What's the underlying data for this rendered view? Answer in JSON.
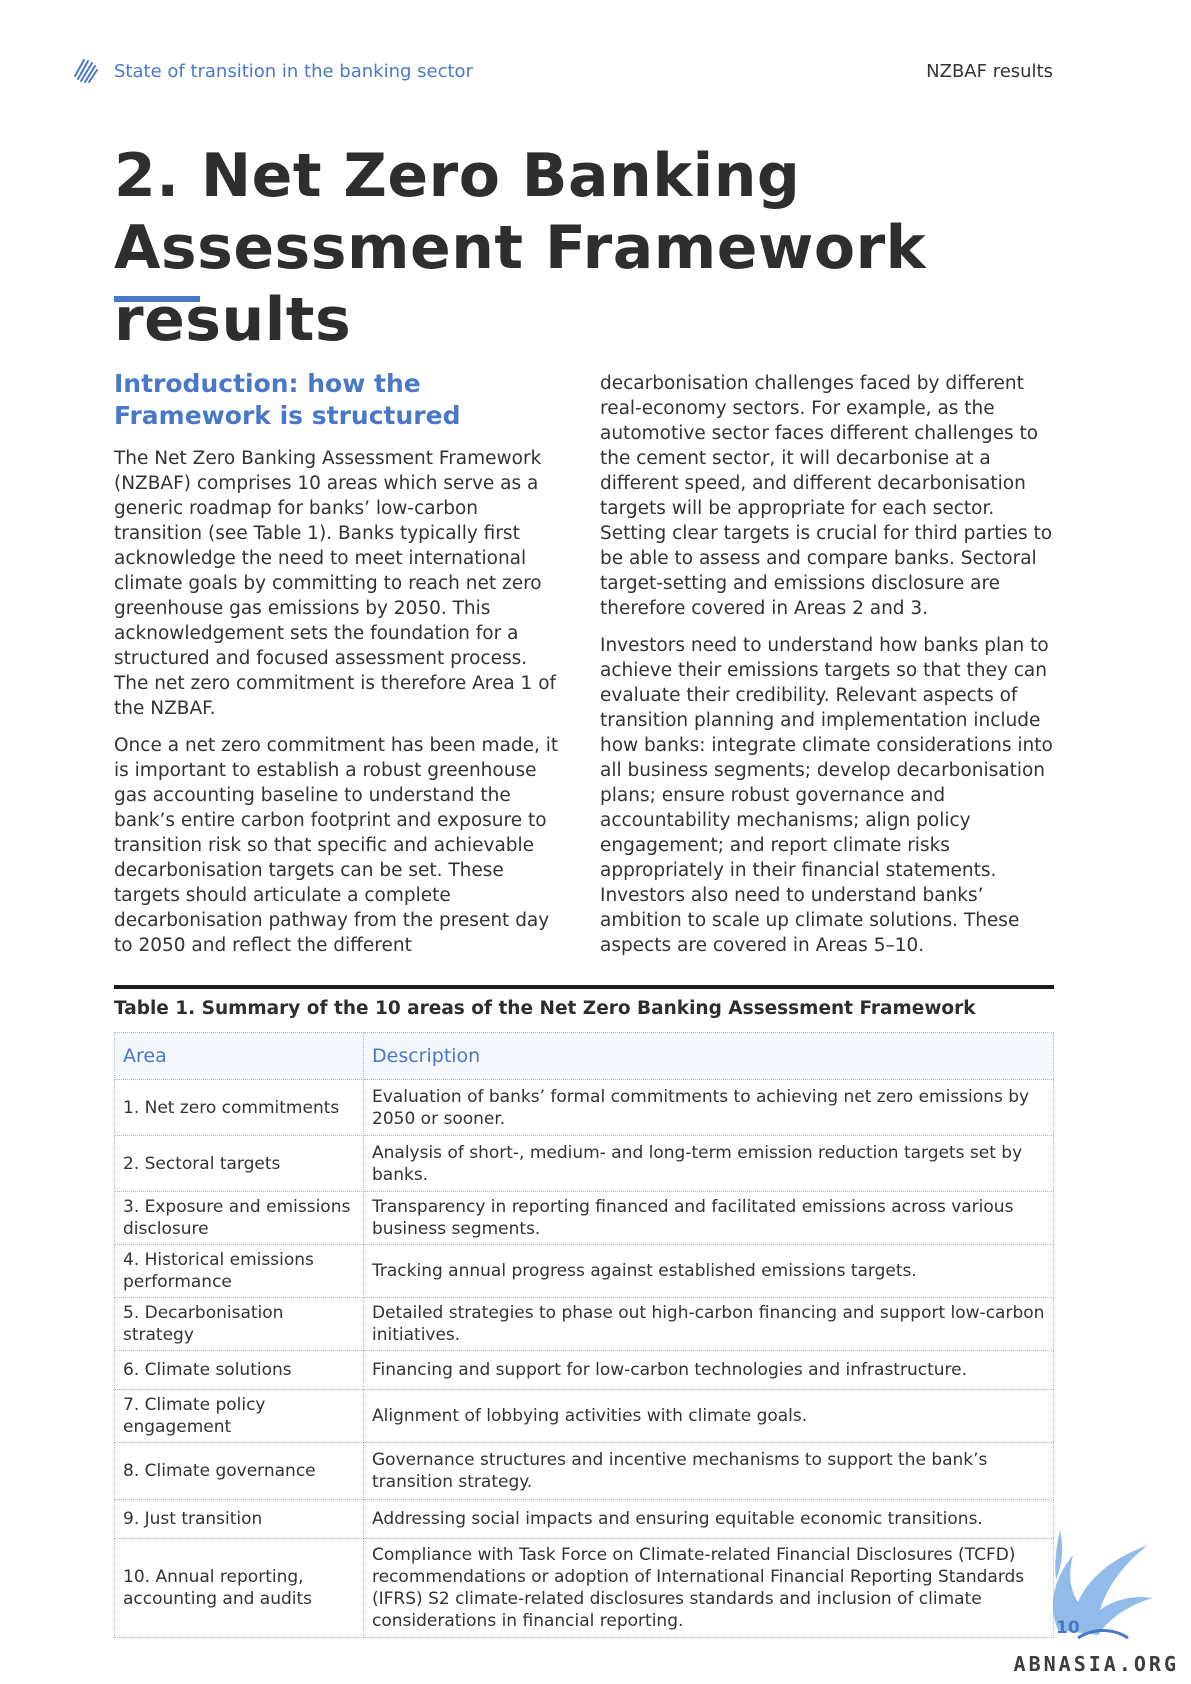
{
  "header": {
    "breadcrumb": "State of transition in the banking sector",
    "section": "NZBAF results",
    "logo_icon": "wave-lines-icon"
  },
  "title": {
    "line1": "2. Net Zero Banking",
    "line2": "Assessment Framework results"
  },
  "intro": {
    "heading_line1": "Introduction: how the",
    "heading_line2": "Framework is structured",
    "left_paragraphs": [
      "The Net Zero Banking Assessment Framework (NZBAF) comprises 10 areas which serve as a generic roadmap for banks’ low-carbon transition (see Table 1). Banks typically first acknowledge the need to meet international climate goals by committing to reach net zero greenhouse gas emissions by 2050. This acknowledgement sets the foundation for a structured and focused assessment process. The net zero commitment is therefore Area 1 of the NZBAF.",
      "Once a net zero commitment has been made, it is important to establish a robust greenhouse gas accounting baseline to understand the bank’s entire carbon footprint and exposure to transition risk so that specific and achievable decarbonisation targets can be set. These targets should articulate a complete decarbonisation pathway from the present day to 2050 and reflect the different"
    ],
    "right_paragraphs": [
      "decarbonisation challenges faced by different real-economy sectors. For example, as the automotive sector faces different challenges to the cement sector, it will decarbonise at a different speed, and different decarbonisation targets will be appropriate for each sector. Setting clear targets is crucial for third parties to be able to assess and compare banks. Sectoral target-setting and emissions disclosure are therefore covered in Areas 2 and 3.",
      "Investors need to understand how banks plan to achieve their emissions targets so that they can evaluate their credibility. Relevant aspects of transition planning and implementation include how banks: integrate climate considerations into all business segments; develop decarbonisation plans; ensure robust governance and accountability mechanisms; align policy engagement; and report climate risks appropriately in their financial statements. Investors also need to understand banks’ ambition to scale up climate solutions. These aspects are covered in Areas 5–10."
    ]
  },
  "table": {
    "caption": "Table 1. Summary of the 10 areas of the Net Zero Banking Assessment Framework",
    "header_area": "Area",
    "header_description": "Description",
    "rows": [
      {
        "area": "1. Net zero commitments",
        "description": "Evaluation of banks’ formal commitments to achieving net zero emissions by 2050 or sooner."
      },
      {
        "area": "2. Sectoral targets",
        "description": "Analysis of short-, medium- and long-term emission reduction targets set by banks."
      },
      {
        "area": "3. Exposure and emissions disclosure",
        "description": "Transparency in reporting financed and facilitated emissions across various business segments."
      },
      {
        "area": "4. Historical emissions performance",
        "description": "Tracking annual progress against established emissions targets."
      },
      {
        "area": "5. Decarbonisation strategy",
        "description": "Detailed strategies to phase out high-carbon financing and support low-carbon initiatives."
      },
      {
        "area": "6. Climate solutions",
        "description": "Financing and support for low-carbon technologies and infrastructure."
      },
      {
        "area": "7. Climate policy engagement",
        "description": "Alignment of lobbying activities with climate goals."
      },
      {
        "area": "8. Climate governance",
        "description": "Governance structures and incentive mechanisms to support the bank’s transition strategy."
      },
      {
        "area": "9. Just transition",
        "description": "Addressing social impacts and ensuring equitable economic transitions."
      },
      {
        "area": "10. Annual reporting, accounting and audits",
        "description": "Compliance with Task Force on Climate-related Financial Disclosures (TCFD) recommendations or adoption of International Financial Reporting Standards (IFRS) S2 climate-related disclosures standards and inclusion of climate considerations in financial reporting."
      }
    ]
  },
  "footer": {
    "page_number": "10",
    "watermark": "ABNASIA.ORG",
    "watermark_icon": "bird-icon"
  },
  "colors": {
    "accent": "#4a78c9",
    "text": "#333333",
    "rule": "#1c1c1c"
  }
}
